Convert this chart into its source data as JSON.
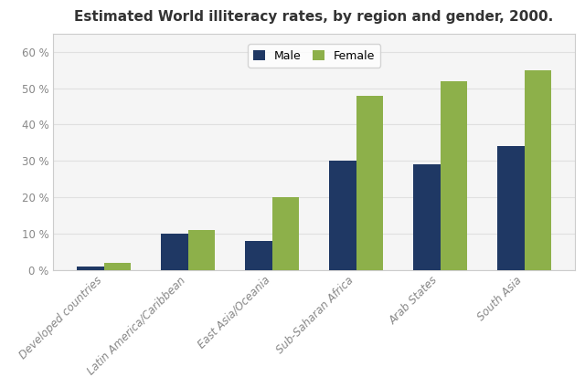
{
  "title": "Estimated World illiteracy rates, by region and gender, 2000.",
  "categories": [
    "Developed countries",
    "Latin America/Caribbean",
    "East Asia/Oceania",
    "Sub-Saharan Africa",
    "Arab States",
    "South Asia"
  ],
  "male_values": [
    1,
    10,
    8,
    30,
    29,
    34
  ],
  "female_values": [
    2,
    11,
    20,
    48,
    52,
    55
  ],
  "male_color": "#1f3864",
  "female_color": "#8db04a",
  "ylim": [
    0,
    65
  ],
  "yticks": [
    0,
    10,
    20,
    30,
    40,
    50,
    60
  ],
  "ytick_labels": [
    "0 %",
    "10 %",
    "20 %",
    "30 %",
    "40 %",
    "50 %",
    "60 %"
  ],
  "legend_labels": [
    "Male",
    "Female"
  ],
  "background_color": "#ffffff",
  "plot_bg_color": "#f5f5f5",
  "bar_width": 0.32,
  "title_fontsize": 11,
  "tick_fontsize": 8.5,
  "legend_fontsize": 9,
  "grid_color": "#e0e0e0",
  "title_color": "#333333",
  "tick_color": "#888888",
  "border_color": "#cccccc"
}
